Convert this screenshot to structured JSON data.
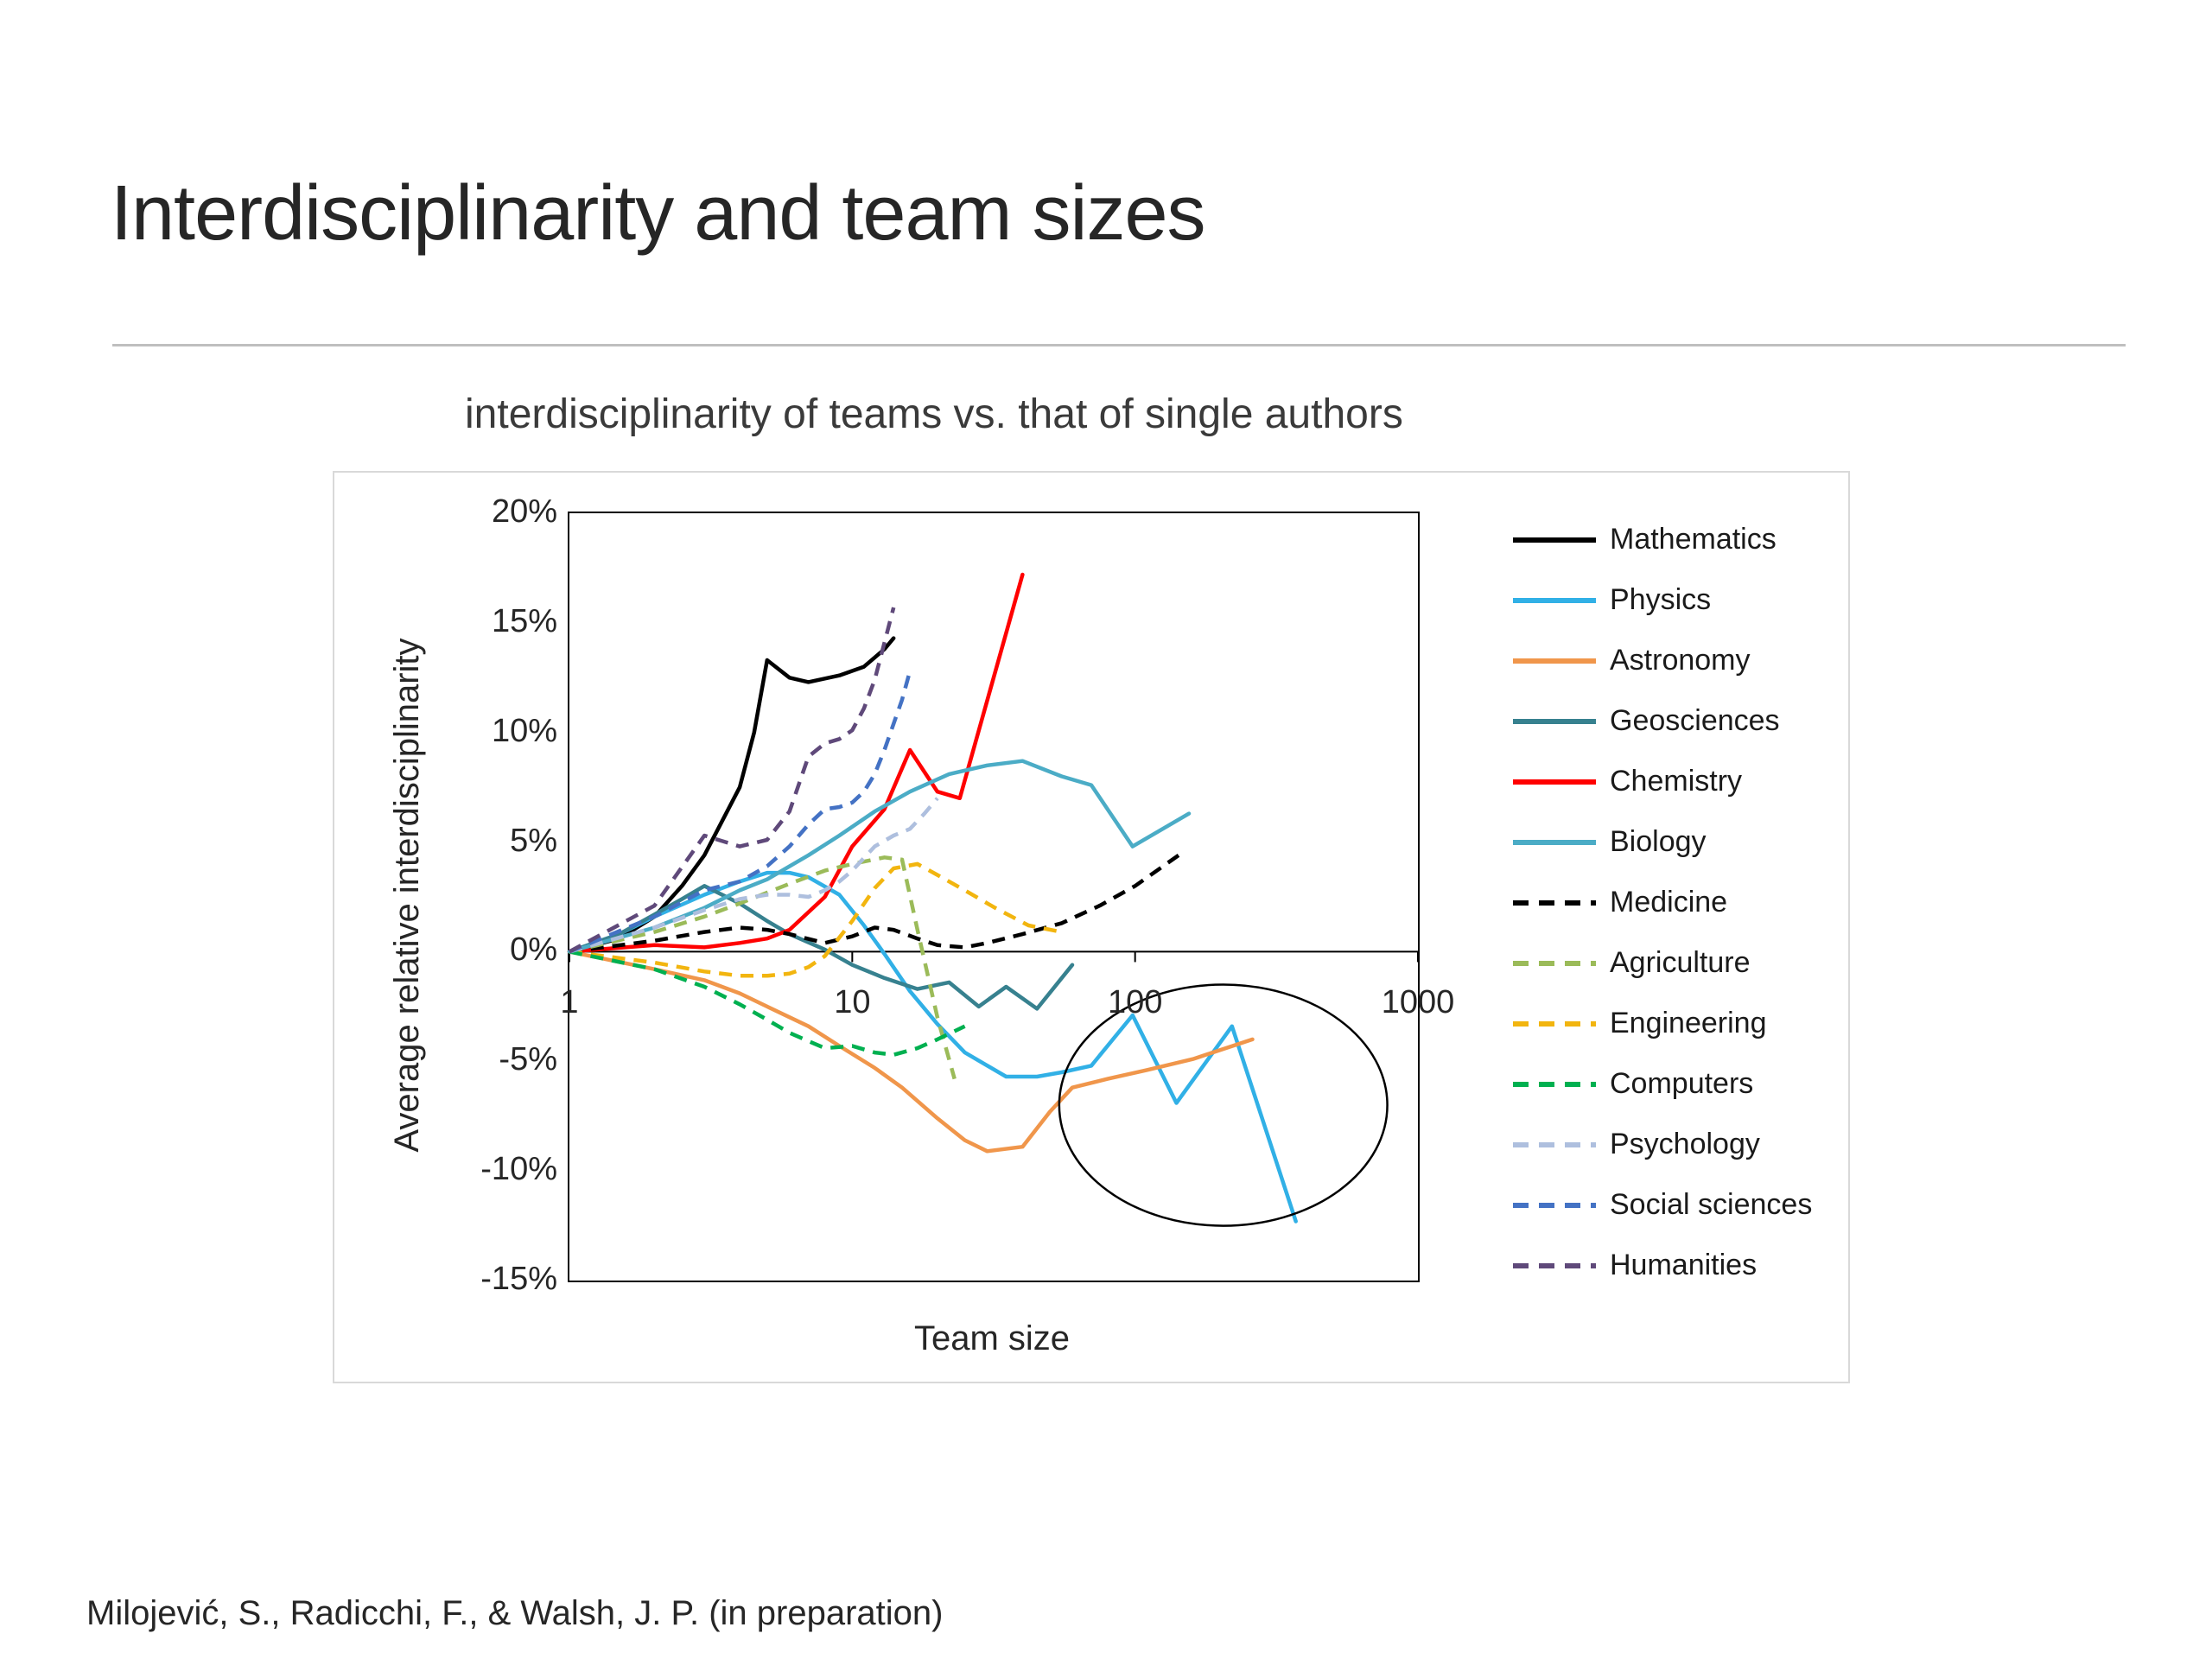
{
  "slide": {
    "title": "Interdisciplinarity and team sizes",
    "citation": "Milojević, S., Radicchi, F., & Walsh, J. P.  (in preparation)"
  },
  "chart_data": {
    "type": "line",
    "title": "interdisciplinarity of teams vs. that of single authors",
    "xlabel": "Team size",
    "ylabel": "Average relative interdisciplinarity",
    "x_scale": "log",
    "xlim": [
      1,
      1000
    ],
    "ylim": [
      -15,
      20
    ],
    "y_unit": "percent",
    "grid": false,
    "legend_position": "right",
    "x_ticks": [
      1,
      10,
      100,
      1000
    ],
    "x_tick_labels": [
      "1",
      "10",
      "100",
      "1000"
    ],
    "y_tick_labels": [
      "20%",
      "15%",
      "10%",
      "5%",
      "0%",
      "-5%",
      "-10%",
      "-15%"
    ],
    "annotation": {
      "shape": "ellipse",
      "cx": 205,
      "cy": -7,
      "rx_decades": 0.58,
      "ry_percent": 5.5
    },
    "series": [
      {
        "name": "Mathematics",
        "color": "#000000",
        "style": "solid",
        "points": [
          [
            1,
            0
          ],
          [
            1.5,
            0.6
          ],
          [
            2,
            1.6
          ],
          [
            2.5,
            3
          ],
          [
            3,
            4.4
          ],
          [
            4,
            7.5
          ],
          [
            4.5,
            10
          ],
          [
            5,
            13.3
          ],
          [
            6,
            12.5
          ],
          [
            7,
            12.3
          ],
          [
            9,
            12.6
          ],
          [
            11,
            13
          ],
          [
            13,
            13.8
          ],
          [
            14,
            14.3
          ]
        ]
      },
      {
        "name": "Physics",
        "color": "#31B0E6",
        "style": "solid",
        "points": [
          [
            1,
            0
          ],
          [
            1.5,
            0.8
          ],
          [
            2,
            1.6
          ],
          [
            3,
            2.6
          ],
          [
            4,
            3.2
          ],
          [
            5,
            3.6
          ],
          [
            6,
            3.6
          ],
          [
            7,
            3.4
          ],
          [
            9,
            2.6
          ],
          [
            11,
            1.2
          ],
          [
            13,
            -0.1
          ],
          [
            16,
            -1.8
          ],
          [
            20,
            -3.3
          ],
          [
            25,
            -4.6
          ],
          [
            35,
            -5.7
          ],
          [
            45,
            -5.7
          ],
          [
            55,
            -5.5
          ],
          [
            70,
            -5.2
          ],
          [
            98,
            -2.9
          ],
          [
            140,
            -6.9
          ],
          [
            220,
            -3.4
          ],
          [
            370,
            -12.3
          ]
        ]
      },
      {
        "name": "Astronomy",
        "color": "#F0964B",
        "style": "solid",
        "points": [
          [
            1,
            0
          ],
          [
            2,
            -0.8
          ],
          [
            3,
            -1.3
          ],
          [
            4,
            -1.9
          ],
          [
            5,
            -2.5
          ],
          [
            7,
            -3.4
          ],
          [
            9,
            -4.3
          ],
          [
            12,
            -5.3
          ],
          [
            15,
            -6.2
          ],
          [
            20,
            -7.6
          ],
          [
            25,
            -8.6
          ],
          [
            30,
            -9.1
          ],
          [
            40,
            -8.9
          ],
          [
            50,
            -7.3
          ],
          [
            60,
            -6.2
          ],
          [
            80,
            -5.8
          ],
          [
            110,
            -5.4
          ],
          [
            160,
            -4.9
          ],
          [
            260,
            -4
          ]
        ]
      },
      {
        "name": "Geosciences",
        "color": "#37818F",
        "style": "solid",
        "points": [
          [
            1,
            0
          ],
          [
            1.5,
            0.8
          ],
          [
            2,
            1.7
          ],
          [
            2.5,
            2.4
          ],
          [
            3,
            3
          ],
          [
            4,
            2.2
          ],
          [
            5,
            1.4
          ],
          [
            6,
            0.8
          ],
          [
            8,
            0.1
          ],
          [
            10,
            -0.6
          ],
          [
            13,
            -1.2
          ],
          [
            17,
            -1.7
          ],
          [
            22,
            -1.4
          ],
          [
            28,
            -2.5
          ],
          [
            35,
            -1.6
          ],
          [
            45,
            -2.6
          ],
          [
            60,
            -0.6
          ]
        ]
      },
      {
        "name": "Chemistry",
        "color": "#FF0000",
        "style": "solid",
        "points": [
          [
            1,
            0
          ],
          [
            2,
            0.3
          ],
          [
            3,
            0.2
          ],
          [
            4,
            0.4
          ],
          [
            5,
            0.6
          ],
          [
            6,
            1
          ],
          [
            8,
            2.5
          ],
          [
            10,
            4.8
          ],
          [
            13,
            6.5
          ],
          [
            16,
            9.2
          ],
          [
            20,
            7.3
          ],
          [
            24,
            7
          ],
          [
            40,
            17.2
          ]
        ]
      },
      {
        "name": "Biology",
        "color": "#4BACC6",
        "style": "solid",
        "points": [
          [
            1,
            0
          ],
          [
            2,
            1.1
          ],
          [
            3,
            2
          ],
          [
            4,
            2.8
          ],
          [
            5,
            3.3
          ],
          [
            7,
            4.4
          ],
          [
            9,
            5.3
          ],
          [
            12,
            6.4
          ],
          [
            16,
            7.3
          ],
          [
            22,
            8.1
          ],
          [
            30,
            8.5
          ],
          [
            40,
            8.7
          ],
          [
            55,
            8
          ],
          [
            70,
            7.6
          ],
          [
            98,
            4.8
          ],
          [
            155,
            6.3
          ]
        ]
      },
      {
        "name": "Medicine",
        "color": "#000000",
        "style": "dashed",
        "points": [
          [
            1,
            0
          ],
          [
            2,
            0.5
          ],
          [
            3,
            0.9
          ],
          [
            4,
            1.1
          ],
          [
            5,
            1
          ],
          [
            6,
            0.8
          ],
          [
            8,
            0.4
          ],
          [
            10,
            0.7
          ],
          [
            12,
            1.1
          ],
          [
            14,
            1
          ],
          [
            17,
            0.6
          ],
          [
            20,
            0.3
          ],
          [
            25,
            0.2
          ],
          [
            30,
            0.4
          ],
          [
            40,
            0.8
          ],
          [
            55,
            1.3
          ],
          [
            75,
            2.1
          ],
          [
            100,
            3
          ],
          [
            150,
            4.6
          ]
        ]
      },
      {
        "name": "Agriculture",
        "color": "#9BBB59",
        "style": "dashed",
        "points": [
          [
            1,
            0
          ],
          [
            2,
            0.9
          ],
          [
            3,
            1.6
          ],
          [
            4,
            2.2
          ],
          [
            6,
            3.1
          ],
          [
            8,
            3.7
          ],
          [
            10,
            4
          ],
          [
            13,
            4.3
          ],
          [
            15,
            4.2
          ],
          [
            17,
            1
          ],
          [
            20,
            -3
          ],
          [
            23,
            -5.8
          ]
        ]
      },
      {
        "name": "Engineering",
        "color": "#F2B50F",
        "style": "dashed",
        "points": [
          [
            1,
            0
          ],
          [
            2,
            -0.5
          ],
          [
            3,
            -0.9
          ],
          [
            4,
            -1.1
          ],
          [
            5,
            -1.1
          ],
          [
            6,
            -1
          ],
          [
            7,
            -0.7
          ],
          [
            8,
            -0.2
          ],
          [
            10,
            1.4
          ],
          [
            12,
            2.9
          ],
          [
            14,
            3.8
          ],
          [
            17,
            4
          ],
          [
            20,
            3.5
          ],
          [
            25,
            2.8
          ],
          [
            32,
            2
          ],
          [
            42,
            1.2
          ],
          [
            55,
            0.9
          ]
        ]
      },
      {
        "name": "Computers",
        "color": "#00B050",
        "style": "dashed",
        "points": [
          [
            1,
            0
          ],
          [
            2,
            -0.8
          ],
          [
            3,
            -1.6
          ],
          [
            4,
            -2.4
          ],
          [
            5,
            -3.1
          ],
          [
            6,
            -3.7
          ],
          [
            8,
            -4.4
          ],
          [
            10,
            -4.3
          ],
          [
            12,
            -4.6
          ],
          [
            14,
            -4.7
          ],
          [
            17,
            -4.4
          ],
          [
            20,
            -4
          ],
          [
            25,
            -3.4
          ]
        ]
      },
      {
        "name": "Psychology",
        "color": "#AEBFDE",
        "style": "dashed",
        "points": [
          [
            1,
            0
          ],
          [
            2,
            1.1
          ],
          [
            3,
            1.9
          ],
          [
            4,
            2.4
          ],
          [
            5,
            2.6
          ],
          [
            6,
            2.6
          ],
          [
            7,
            2.5
          ],
          [
            8,
            2.8
          ],
          [
            9,
            3.2
          ],
          [
            10,
            3.7
          ],
          [
            12,
            4.8
          ],
          [
            14,
            5.3
          ],
          [
            16,
            5.6
          ],
          [
            18,
            6.3
          ],
          [
            20,
            7
          ]
        ]
      },
      {
        "name": "Social sciences",
        "color": "#4472C4",
        "style": "dashed",
        "points": [
          [
            1,
            0
          ],
          [
            2,
            1.6
          ],
          [
            3,
            2.8
          ],
          [
            4,
            3.2
          ],
          [
            5,
            3.9
          ],
          [
            6,
            4.8
          ],
          [
            7,
            5.8
          ],
          [
            8,
            6.5
          ],
          [
            9,
            6.6
          ],
          [
            10,
            6.8
          ],
          [
            11,
            7.3
          ],
          [
            12,
            8.1
          ],
          [
            13,
            9.2
          ],
          [
            14,
            10.4
          ],
          [
            15,
            11.5
          ],
          [
            16,
            12.8
          ]
        ]
      },
      {
        "name": "Humanities",
        "color": "#5F497A",
        "style": "dashed",
        "points": [
          [
            1,
            0
          ],
          [
            2,
            2.1
          ],
          [
            3,
            5.3
          ],
          [
            4,
            4.8
          ],
          [
            5,
            5.1
          ],
          [
            6,
            6.4
          ],
          [
            7,
            8.9
          ],
          [
            8,
            9.5
          ],
          [
            9,
            9.7
          ],
          [
            10,
            10.1
          ],
          [
            11,
            11.1
          ],
          [
            12,
            12.4
          ],
          [
            13,
            14.1
          ],
          [
            14,
            15.7
          ]
        ]
      }
    ]
  }
}
